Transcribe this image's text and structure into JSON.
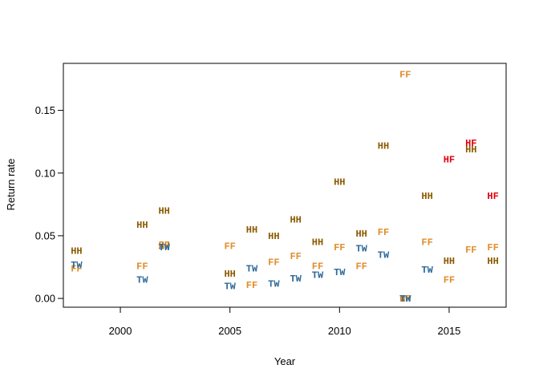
{
  "chart_data": {
    "type": "scatter",
    "title": "",
    "xlabel": "Year",
    "ylabel": "Return rate",
    "xlim": [
      1997.4,
      2017.6
    ],
    "ylim": [
      -0.007,
      0.1875
    ],
    "x_ticks": [
      2000,
      2005,
      2010,
      2015
    ],
    "y_ticks": [
      0.0,
      0.05,
      0.1,
      0.15
    ],
    "y_tick_labels": [
      "0.00",
      "0.05",
      "0.10",
      "0.15"
    ],
    "grid": false,
    "legend": "none",
    "series": [
      {
        "label": "HH",
        "color": "#8B5A00",
        "points": [
          {
            "x": 1998,
            "y": 0.038
          },
          {
            "x": 2001,
            "y": 0.059
          },
          {
            "x": 2002,
            "y": 0.07
          },
          {
            "x": 2002,
            "y": 0.042
          },
          {
            "x": 2005,
            "y": 0.02
          },
          {
            "x": 2006,
            "y": 0.055
          },
          {
            "x": 2007,
            "y": 0.05
          },
          {
            "x": 2008,
            "y": 0.063
          },
          {
            "x": 2009,
            "y": 0.045
          },
          {
            "x": 2010,
            "y": 0.093
          },
          {
            "x": 2011,
            "y": 0.052
          },
          {
            "x": 2012,
            "y": 0.122
          },
          {
            "x": 2013,
            "y": 0.0
          },
          {
            "x": 2014,
            "y": 0.082
          },
          {
            "x": 2015,
            "y": 0.03
          },
          {
            "x": 2016,
            "y": 0.119
          },
          {
            "x": 2017,
            "y": 0.03
          }
        ]
      },
      {
        "label": "FF",
        "color": "#E08E2E",
        "points": [
          {
            "x": 1998,
            "y": 0.024
          },
          {
            "x": 2001,
            "y": 0.026
          },
          {
            "x": 2002,
            "y": 0.043
          },
          {
            "x": 2005,
            "y": 0.042
          },
          {
            "x": 2006,
            "y": 0.011
          },
          {
            "x": 2007,
            "y": 0.029
          },
          {
            "x": 2008,
            "y": 0.034
          },
          {
            "x": 2009,
            "y": 0.026
          },
          {
            "x": 2010,
            "y": 0.041
          },
          {
            "x": 2011,
            "y": 0.026
          },
          {
            "x": 2012,
            "y": 0.053
          },
          {
            "x": 2013,
            "y": 0.179
          },
          {
            "x": 2013,
            "y": 0.0
          },
          {
            "x": 2014,
            "y": 0.045
          },
          {
            "x": 2015,
            "y": 0.015
          },
          {
            "x": 2016,
            "y": 0.039
          },
          {
            "x": 2017,
            "y": 0.041
          }
        ]
      },
      {
        "label": "TW",
        "color": "#2F6A9A",
        "points": [
          {
            "x": 1998,
            "y": 0.027
          },
          {
            "x": 2001,
            "y": 0.015
          },
          {
            "x": 2002,
            "y": 0.041
          },
          {
            "x": 2005,
            "y": 0.01
          },
          {
            "x": 2006,
            "y": 0.024
          },
          {
            "x": 2007,
            "y": 0.012
          },
          {
            "x": 2008,
            "y": 0.016
          },
          {
            "x": 2009,
            "y": 0.019
          },
          {
            "x": 2010,
            "y": 0.021
          },
          {
            "x": 2011,
            "y": 0.04
          },
          {
            "x": 2012,
            "y": 0.035
          },
          {
            "x": 2013,
            "y": 0.0
          },
          {
            "x": 2014,
            "y": 0.023
          }
        ]
      },
      {
        "label": "HF",
        "color": "#E0000E",
        "points": [
          {
            "x": 2015,
            "y": 0.111
          },
          {
            "x": 2016,
            "y": 0.124
          },
          {
            "x": 2017,
            "y": 0.082
          }
        ]
      }
    ]
  }
}
